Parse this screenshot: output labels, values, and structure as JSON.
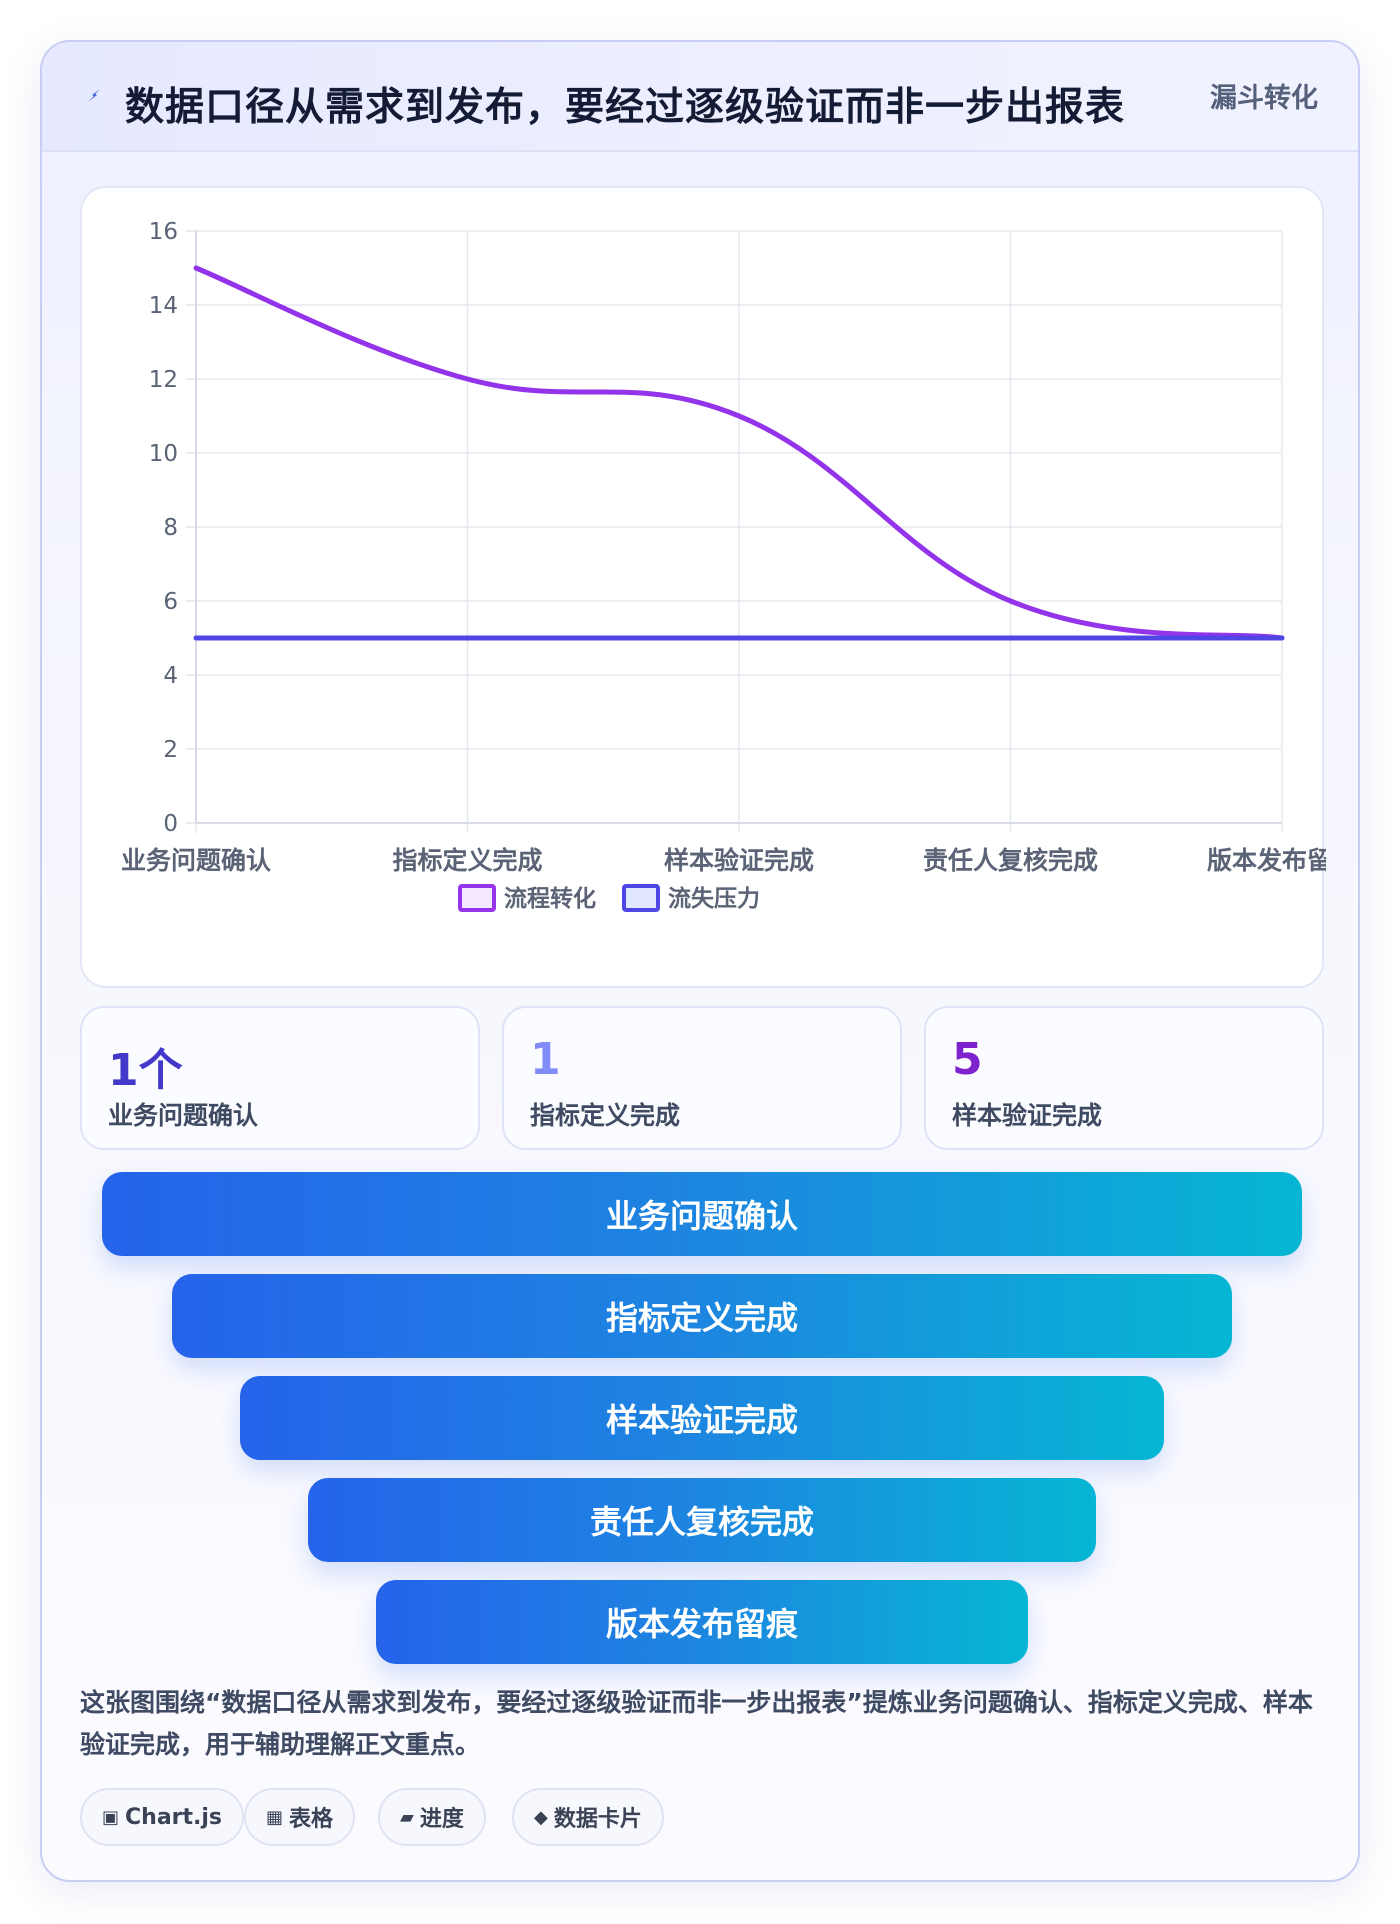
{
  "header": {
    "title": "数据口径从需求到发布，要经过逐级验证而非一步出报表",
    "tag": "漏斗转化"
  },
  "chart_data": {
    "type": "line",
    "categories": [
      "业务问题确认",
      "指标定义完成",
      "样本验证完成",
      "责任人复核完成",
      "版本发布留痕"
    ],
    "series": [
      {
        "name": "流程转化",
        "values": [
          15,
          12,
          11,
          6,
          5
        ],
        "color": "#9333ea",
        "fill": "#f3e8ff"
      },
      {
        "name": "流失压力",
        "values": [
          5,
          5,
          5,
          5,
          5
        ],
        "color": "#4f46e5",
        "fill": "#e0e7ff"
      }
    ],
    "ylim": [
      0,
      16
    ],
    "yticks": [
      "0",
      "2",
      "4",
      "6",
      "8",
      "10",
      "12",
      "14",
      "16"
    ],
    "legend_position": "bottom",
    "grid": true
  },
  "stats": [
    {
      "value": "1个",
      "label": "业务问题确认",
      "color": "#4338ca"
    },
    {
      "value": "1",
      "label": "指标定义完成",
      "color": "#818cf8"
    },
    {
      "value": "5",
      "label": "样本验证完成",
      "color": "#7e22ce"
    }
  ],
  "funnel": {
    "stages": [
      "业务问题确认",
      "指标定义完成",
      "样本验证完成",
      "责任人复核完成",
      "版本发布留痕"
    ]
  },
  "description": "这张图围绕“数据口径从需求到发布，要经过逐级验证而非一步出报表”提炼业务问题确认、指标定义完成、样本验证完成，用于辅助理解正文重点。",
  "chips": [
    {
      "icon": "▣",
      "label": "Chart.js"
    },
    {
      "icon": "▦",
      "label": "表格"
    },
    {
      "icon": "▰",
      "label": "进度"
    },
    {
      "icon": "◆",
      "label": "数据卡片"
    }
  ]
}
